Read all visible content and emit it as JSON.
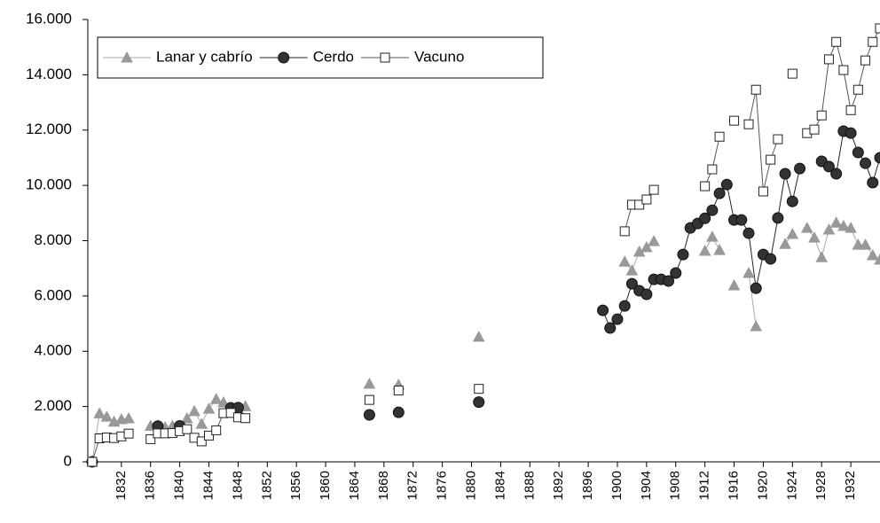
{
  "chart_data": {
    "type": "line",
    "x": [
      1828,
      1829,
      1830,
      1831,
      1832,
      1833,
      1834,
      1835,
      1836,
      1837,
      1838,
      1839,
      1840,
      1841,
      1842,
      1843,
      1844,
      1845,
      1846,
      1847,
      1848,
      1849,
      1850,
      1866,
      1867,
      1870,
      1871,
      1881,
      1882,
      1898,
      1899,
      1900,
      1901,
      1902,
      1903,
      1904,
      1905,
      1906,
      1907,
      1908,
      1909,
      1910,
      1911,
      1912,
      1913,
      1914,
      1915,
      1916,
      1917,
      1918,
      1919,
      1920,
      1921,
      1922,
      1923,
      1924,
      1925,
      1926,
      1927,
      1928,
      1929,
      1930,
      1931,
      1932,
      1933,
      1934,
      1935,
      1936
    ],
    "series": [
      {
        "name": "Lanar y cabrío",
        "color": "#999999",
        "line_color": "#aaaaaa",
        "marker": "triangle",
        "values": [
          0,
          1750,
          1630,
          1450,
          1540,
          1570,
          null,
          null,
          1300,
          1310,
          1250,
          1300,
          1280,
          1570,
          1830,
          1370,
          1920,
          2270,
          2150,
          1960,
          1890,
          2010,
          null,
          2820,
          null,
          2790,
          null,
          4520,
          null,
          null,
          null,
          null,
          7240,
          6920,
          7600,
          7760,
          7980,
          null,
          null,
          null,
          null,
          null,
          null,
          7630,
          8140,
          7660,
          null,
          6380,
          null,
          6830,
          4900,
          null,
          null,
          null,
          7880,
          8240,
          null,
          8460,
          8110,
          7400,
          8400,
          8650,
          8530,
          8460,
          7850,
          7850,
          7470,
          7310
        ]
      },
      {
        "name": "Cerdo",
        "color": "#333333",
        "line_color": "#222222",
        "marker": "circle",
        "values": [
          0,
          null,
          null,
          null,
          null,
          null,
          null,
          null,
          null,
          1290,
          null,
          null,
          1300,
          null,
          null,
          null,
          null,
          null,
          null,
          1950,
          1960,
          null,
          null,
          1700,
          null,
          1790,
          null,
          2160,
          null,
          5480,
          4840,
          5160,
          5640,
          6440,
          6190,
          6060,
          6600,
          6600,
          6540,
          6830,
          7500,
          8460,
          8620,
          8810,
          9100,
          9710,
          10030,
          8750,
          8750,
          8270,
          6280,
          7500,
          7340,
          8820,
          10420,
          9420,
          10610,
          null,
          null,
          10870,
          10680,
          10420,
          11960,
          11890,
          11190,
          10800,
          10100,
          11000
        ]
      },
      {
        "name": "Vacuno",
        "color": "#ffffff",
        "line_color": "#555555",
        "marker": "square",
        "values": [
          0,
          850,
          880,
          860,
          920,
          1020,
          null,
          null,
          820,
          1030,
          1030,
          1040,
          1110,
          1180,
          870,
          740,
          950,
          1140,
          1760,
          1770,
          1610,
          1580,
          null,
          2240,
          null,
          2580,
          null,
          2640,
          null,
          null,
          null,
          null,
          8340,
          9300,
          9300,
          9490,
          9840,
          null,
          null,
          null,
          null,
          null,
          null,
          9970,
          10580,
          11760,
          null,
          12340,
          null,
          12210,
          13460,
          9780,
          10930,
          11670,
          null,
          14040,
          null,
          11890,
          12020,
          12530,
          14560,
          15190,
          14170,
          12720,
          13460,
          14520,
          15190,
          15680
        ]
      }
    ],
    "xlim": [
      1827.4,
      1936
    ],
    "xticks": [
      1832,
      1836,
      1840,
      1844,
      1848,
      1852,
      1856,
      1860,
      1864,
      1868,
      1872,
      1876,
      1880,
      1884,
      1888,
      1892,
      1896,
      1900,
      1904,
      1908,
      1912,
      1916,
      1920,
      1924,
      1928,
      1932
    ],
    "ylim": [
      0,
      16000
    ],
    "yticks": [
      {
        "value": 0,
        "label": "0"
      },
      {
        "value": 2000,
        "label": "2.000"
      },
      {
        "value": 4000,
        "label": "4.000"
      },
      {
        "value": 6000,
        "label": "6.000"
      },
      {
        "value": 8000,
        "label": "8.000"
      },
      {
        "value": 10000,
        "label": "10.000"
      },
      {
        "value": 12000,
        "label": "12.000"
      },
      {
        "value": 14000,
        "label": "14.000"
      },
      {
        "value": 16000,
        "label": "16.000"
      }
    ],
    "legend": "upper-left"
  }
}
